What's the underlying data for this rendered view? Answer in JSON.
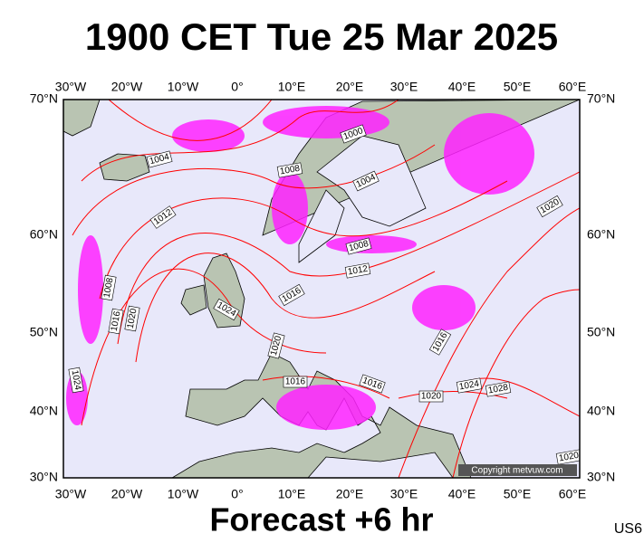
{
  "title": "1900 CET Tue 25 Mar 2025",
  "footer": "Forecast +6 hr",
  "code": "US6",
  "copyright": "Copyright metvuw.com",
  "lon_labels": [
    "30°W",
    "20°W",
    "10°W",
    "0°",
    "10°E",
    "20°E",
    "30°E",
    "40°E",
    "50°E",
    "60°E"
  ],
  "lat_labels": [
    "70°N",
    "60°N",
    "50°N",
    "40°N",
    "30°N"
  ],
  "isobar_labels": [
    "1000",
    "1004",
    "1008",
    "1004",
    "1012",
    "1020",
    "1008",
    "1012",
    "1008",
    "1016",
    "1024",
    "1016",
    "1020",
    "1020",
    "1016",
    "1024",
    "1016",
    "1016",
    "1020",
    "1024",
    "1028",
    "1020"
  ]
}
